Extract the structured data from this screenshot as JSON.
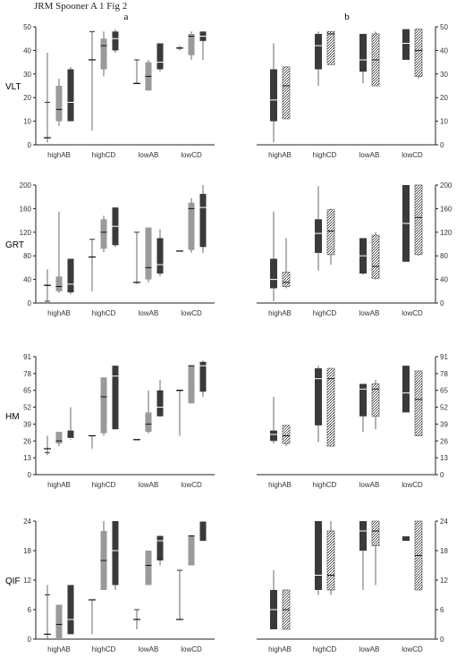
{
  "header": {
    "text": "JRM Spooner A 1  Fig 2"
  },
  "chart_data": {
    "type": "box",
    "panel_labels": [
      "a",
      "b"
    ],
    "categories": [
      "highAB",
      "highCD",
      "lowAB",
      "lowCD"
    ],
    "colors": {
      "dark": "#3a3a3a",
      "gray": "#9a9a9a",
      "hatched": "#ffffff",
      "axis": "#222222"
    },
    "rows": [
      {
        "ylabel": "VLT",
        "ylim": [
          0,
          50
        ],
        "yticks": [
          0,
          10,
          20,
          30,
          40,
          50
        ],
        "a": [
          [
            {
              "min": 1,
              "q1": 3,
              "med": 3,
              "q3": 18,
              "max": 39,
              "style": "line"
            },
            {
              "min": 8,
              "q1": 10,
              "med": 15,
              "q3": 25,
              "max": 28,
              "style": "gray"
            },
            {
              "min": 10,
              "q1": 10,
              "med": 18,
              "q3": 32,
              "max": 33,
              "style": "dark"
            }
          ],
          [
            {
              "min": 6,
              "q1": 36,
              "med": 36,
              "q3": 48,
              "max": 48,
              "style": "line"
            },
            {
              "min": 29,
              "q1": 32,
              "med": 42,
              "q3": 45,
              "max": 48,
              "style": "gray"
            },
            {
              "min": 39,
              "q1": 40,
              "med": 45,
              "q3": 48,
              "max": 49,
              "style": "dark"
            }
          ],
          [
            {
              "min": 26,
              "q1": 26,
              "med": 26,
              "q3": 36,
              "max": 36,
              "style": "line"
            },
            {
              "min": 23,
              "q1": 23,
              "med": 29,
              "q3": 35,
              "max": 36,
              "style": "gray"
            },
            {
              "min": 31,
              "q1": 32,
              "med": 35,
              "q3": 43,
              "max": 43,
              "style": "dark"
            }
          ],
          [
            {
              "min": 40,
              "q1": 41,
              "med": 41,
              "q3": 41,
              "max": 42,
              "style": "line"
            },
            {
              "min": 36,
              "q1": 38,
              "med": 46,
              "q3": 47,
              "max": 48,
              "style": "gray"
            },
            {
              "min": 36,
              "q1": 44,
              "med": 46,
              "q3": 48,
              "max": 48,
              "style": "dark"
            }
          ]
        ],
        "b": [
          [
            {
              "min": 1,
              "q1": 10,
              "med": 19,
              "q3": 32,
              "max": 43,
              "style": "dark"
            },
            {
              "min": 11,
              "q1": 11,
              "med": 25,
              "q3": 33,
              "max": 33,
              "style": "hatched"
            }
          ],
          [
            {
              "min": 25,
              "q1": 32,
              "med": 42,
              "q3": 47,
              "max": 48,
              "style": "dark"
            },
            {
              "min": 34,
              "q1": 34,
              "med": 47,
              "q3": 48,
              "max": 48,
              "style": "hatched"
            }
          ],
          [
            {
              "min": 26,
              "q1": 31,
              "med": 36,
              "q3": 47,
              "max": 47,
              "style": "dark"
            },
            {
              "min": 25,
              "q1": 25,
              "med": 36,
              "q3": 47,
              "max": 48,
              "style": "hatched"
            }
          ],
          [
            {
              "min": 36,
              "q1": 36,
              "med": 43,
              "q3": 49,
              "max": 49,
              "style": "dark"
            },
            {
              "min": 28,
              "q1": 29,
              "med": 40,
              "q3": 49,
              "max": 49,
              "style": "hatched"
            }
          ]
        ]
      },
      {
        "ylabel": "GRT",
        "ylim": [
          0,
          200
        ],
        "yticks": [
          0,
          40,
          80,
          120,
          160,
          200
        ],
        "a": [
          [
            {
              "min": 3,
              "q1": 3,
              "med": 30,
              "q3": 30,
              "max": 57,
              "style": "line"
            },
            {
              "min": 17,
              "q1": 20,
              "med": 28,
              "q3": 45,
              "max": 155,
              "style": "gray"
            },
            {
              "min": 15,
              "q1": 18,
              "med": 32,
              "q3": 75,
              "max": 75,
              "style": "dark"
            }
          ],
          [
            {
              "min": 20,
              "q1": 78,
              "med": 78,
              "q3": 108,
              "max": 108,
              "style": "line"
            },
            {
              "min": 86,
              "q1": 92,
              "med": 120,
              "q3": 142,
              "max": 148,
              "style": "gray"
            },
            {
              "min": 95,
              "q1": 98,
              "med": 130,
              "q3": 162,
              "max": 162,
              "style": "dark"
            }
          ],
          [
            {
              "min": 32,
              "q1": 35,
              "med": 35,
              "q3": 120,
              "max": 120,
              "style": "line"
            },
            {
              "min": 35,
              "q1": 40,
              "med": 60,
              "q3": 128,
              "max": 128,
              "style": "gray"
            },
            {
              "min": 45,
              "q1": 50,
              "med": 65,
              "q3": 110,
              "max": 125,
              "style": "dark"
            }
          ],
          [
            {
              "min": 88,
              "q1": 88,
              "med": 88,
              "q3": 88,
              "max": 88,
              "style": "line"
            },
            {
              "min": 85,
              "q1": 90,
              "med": 160,
              "q3": 170,
              "max": 178,
              "style": "gray"
            },
            {
              "min": 85,
              "q1": 95,
              "med": 162,
              "q3": 185,
              "max": 200,
              "style": "dark"
            }
          ]
        ],
        "b": [
          [
            {
              "min": 3,
              "q1": 25,
              "med": 40,
              "q3": 75,
              "max": 155,
              "style": "dark"
            },
            {
              "min": 25,
              "q1": 28,
              "med": 35,
              "q3": 52,
              "max": 110,
              "style": "hatched"
            }
          ],
          [
            {
              "min": 55,
              "q1": 85,
              "med": 118,
              "q3": 142,
              "max": 198,
              "style": "dark"
            },
            {
              "min": 65,
              "q1": 82,
              "med": 122,
              "q3": 158,
              "max": 160,
              "style": "hatched"
            }
          ],
          [
            {
              "min": 48,
              "q1": 50,
              "med": 80,
              "q3": 110,
              "max": 110,
              "style": "dark"
            },
            {
              "min": 40,
              "q1": 42,
              "med": 62,
              "q3": 115,
              "max": 120,
              "style": "hatched"
            }
          ],
          [
            {
              "min": 70,
              "q1": 70,
              "med": 135,
              "q3": 200,
              "max": 200,
              "style": "dark"
            },
            {
              "min": 80,
              "q1": 82,
              "med": 145,
              "q3": 200,
              "max": 200,
              "style": "hatched"
            }
          ]
        ]
      },
      {
        "ylabel": "HM",
        "ylim": [
          0,
          91
        ],
        "yticks": [
          0,
          13,
          26,
          39,
          52,
          65,
          78,
          91
        ],
        "ytick_labels": [
          "0",
          "13",
          "26",
          "39",
          "52",
          "65",
          "78",
          "91"
        ],
        "a": [
          [
            {
              "min": 15,
              "q1": 17,
              "med": 20,
              "q3": 20,
              "max": 30,
              "style": "line"
            },
            {
              "min": 22,
              "q1": 24,
              "med": 26,
              "q3": 33,
              "max": 33,
              "style": "gray"
            },
            {
              "min": 27,
              "q1": 28,
              "med": 28,
              "q3": 34,
              "max": 52,
              "style": "dark"
            }
          ],
          [
            {
              "min": 20,
              "q1": 30,
              "med": 30,
              "q3": 30,
              "max": 30,
              "style": "line"
            },
            {
              "min": 30,
              "q1": 32,
              "med": 60,
              "q3": 75,
              "max": 75,
              "style": "gray"
            },
            {
              "min": 35,
              "q1": 35,
              "med": 76,
              "q3": 84,
              "max": 84,
              "style": "dark"
            }
          ],
          [
            {
              "min": 27,
              "q1": 27,
              "med": 27,
              "q3": 27,
              "max": 27,
              "style": "line"
            },
            {
              "min": 32,
              "q1": 33,
              "med": 39,
              "q3": 48,
              "max": 65,
              "style": "gray"
            },
            {
              "min": 45,
              "q1": 45,
              "med": 52,
              "q3": 65,
              "max": 73,
              "style": "dark"
            }
          ],
          [
            {
              "min": 30,
              "q1": 65,
              "med": 65,
              "q3": 65,
              "max": 65,
              "style": "line"
            },
            {
              "min": 55,
              "q1": 55,
              "med": 84,
              "q3": 84,
              "max": 84,
              "style": "gray"
            },
            {
              "min": 60,
              "q1": 64,
              "med": 84,
              "q3": 87,
              "max": 88,
              "style": "dark"
            }
          ]
        ],
        "b": [
          [
            {
              "min": 24,
              "q1": 26,
              "med": 31,
              "q3": 34,
              "max": 60,
              "style": "dark"
            },
            {
              "min": 22,
              "q1": 24,
              "med": 30,
              "q3": 38,
              "max": 38,
              "style": "hatched"
            }
          ],
          [
            {
              "min": 25,
              "q1": 38,
              "med": 74,
              "q3": 82,
              "max": 84,
              "style": "dark"
            },
            {
              "min": 22,
              "q1": 22,
              "med": 74,
              "q3": 82,
              "max": 82,
              "style": "hatched"
            }
          ],
          [
            {
              "min": 33,
              "q1": 45,
              "med": 66,
              "q3": 70,
              "max": 70,
              "style": "dark"
            },
            {
              "min": 35,
              "q1": 45,
              "med": 66,
              "q3": 70,
              "max": 73,
              "style": "hatched"
            }
          ],
          [
            {
              "min": 48,
              "q1": 48,
              "med": 63,
              "q3": 84,
              "max": 84,
              "style": "dark"
            },
            {
              "min": 30,
              "q1": 30,
              "med": 58,
              "q3": 80,
              "max": 80,
              "style": "hatched"
            }
          ]
        ]
      },
      {
        "ylabel": "QIF",
        "ylim": [
          0,
          24
        ],
        "yticks": [
          0,
          6,
          12,
          18,
          24
        ],
        "a": [
          [
            {
              "min": 0,
              "q1": 1,
              "med": 1,
              "q3": 9,
              "max": 11,
              "style": "line"
            },
            {
              "min": 0,
              "q1": 0,
              "med": 3,
              "q3": 7,
              "max": 7,
              "style": "gray"
            },
            {
              "min": 1,
              "q1": 1,
              "med": 4,
              "q3": 11,
              "max": 11,
              "style": "dark"
            }
          ],
          [
            {
              "min": 1,
              "q1": 8,
              "med": 8,
              "q3": 8,
              "max": 8,
              "style": "line"
            },
            {
              "min": 10,
              "q1": 10,
              "med": 16,
              "q3": 22,
              "max": 24,
              "style": "gray"
            },
            {
              "min": 10,
              "q1": 11,
              "med": 18,
              "q3": 24,
              "max": 24,
              "style": "dark"
            }
          ],
          [
            {
              "min": 2,
              "q1": 4,
              "med": 4,
              "q3": 6,
              "max": 6,
              "style": "line"
            },
            {
              "min": 11,
              "q1": 11,
              "med": 15,
              "q3": 18,
              "max": 18,
              "style": "gray"
            },
            {
              "min": 15,
              "q1": 16,
              "med": 20,
              "q3": 21,
              "max": 21,
              "style": "dark"
            }
          ],
          [
            {
              "min": 4,
              "q1": 4,
              "med": 4,
              "q3": 14,
              "max": 14,
              "style": "line"
            },
            {
              "min": 15,
              "q1": 15,
              "med": 21,
              "q3": 21,
              "max": 21,
              "style": "gray"
            },
            {
              "min": 20,
              "q1": 20,
              "med": 24,
              "q3": 24,
              "max": 24,
              "style": "dark"
            }
          ]
        ],
        "b": [
          [
            {
              "min": 2,
              "q1": 2,
              "med": 6,
              "q3": 10,
              "max": 14,
              "style": "dark"
            },
            {
              "min": 2,
              "q1": 2,
              "med": 6,
              "q3": 10,
              "max": 10,
              "style": "hatched"
            }
          ],
          [
            {
              "min": 9,
              "q1": 10,
              "med": 13,
              "q3": 24,
              "max": 24,
              "style": "dark"
            },
            {
              "min": 9,
              "q1": 10,
              "med": 13,
              "q3": 22,
              "max": 24,
              "style": "hatched"
            }
          ],
          [
            {
              "min": 10,
              "q1": 18,
              "med": 22,
              "q3": 24,
              "max": 24,
              "style": "dark"
            },
            {
              "min": 11,
              "q1": 19,
              "med": 22,
              "q3": 24,
              "max": 24,
              "style": "hatched"
            }
          ],
          [
            {
              "min": 20,
              "q1": 20,
              "med": 21,
              "q3": 21,
              "max": 21,
              "style": "dark"
            },
            {
              "min": 10,
              "q1": 10,
              "med": 17,
              "q3": 24,
              "max": 24,
              "style": "hatched"
            }
          ]
        ]
      }
    ]
  }
}
